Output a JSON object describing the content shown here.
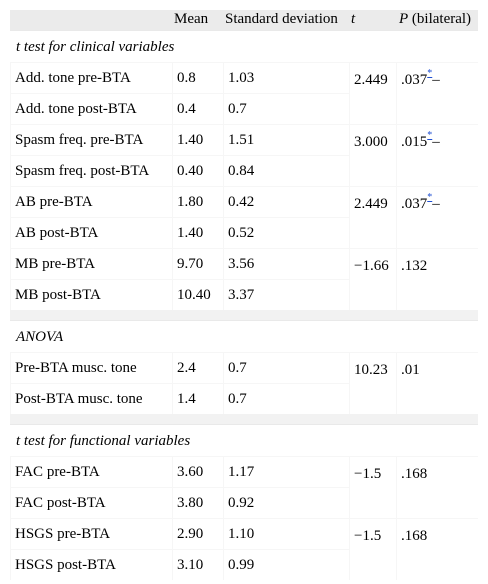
{
  "header": {
    "col_mean": "Mean",
    "col_sd": "Standard deviation",
    "col_t": "t",
    "col_p_label": "P",
    "col_p_suffix": " (bilateral)"
  },
  "sections": [
    {
      "title": "t test for clinical variables",
      "groups": [
        {
          "rows": [
            {
              "label": "Add. tone pre-BTA",
              "mean": "0.8",
              "sd": "1.03"
            },
            {
              "label": "Add. tone post-BTA",
              "mean": "0.4",
              "sd": "0.7"
            }
          ],
          "t": "2.449",
          "p": ".037",
          "sig_mark": "*",
          "dash": "–"
        },
        {
          "rows": [
            {
              "label": "Spasm freq. pre-BTA",
              "mean": "1.40",
              "sd": "1.51"
            },
            {
              "label": "Spasm freq. post-BTA",
              "mean": "0.40",
              "sd": "0.84"
            }
          ],
          "t": "3.000",
          "p": ".015",
          "sig_mark": "*",
          "dash": "–"
        },
        {
          "rows": [
            {
              "label": "AB pre-BTA",
              "mean": "1.80",
              "sd": "0.42"
            },
            {
              "label": "AB post-BTA",
              "mean": "1.40",
              "sd": "0.52"
            }
          ],
          "t": "2.449",
          "p": ".037",
          "sig_mark": "*",
          "dash": "–"
        },
        {
          "rows": [
            {
              "label": "MB pre-BTA",
              "mean": "9.70",
              "sd": "3.56"
            },
            {
              "label": "MB post-BTA",
              "mean": "10.40",
              "sd": "3.37"
            }
          ],
          "t": "−1.66",
          "p": ".132"
        }
      ]
    },
    {
      "title": "ANOVA",
      "groups": [
        {
          "rows": [
            {
              "label": "Pre-BTA musc. tone",
              "mean": "2.4",
              "sd": "0.7"
            },
            {
              "label": "Post-BTA musc. tone",
              "mean": "1.4",
              "sd": "0.7"
            }
          ],
          "t": "10.23",
          "p": ".01"
        }
      ]
    },
    {
      "title": "t test for functional variables",
      "groups": [
        {
          "rows": [
            {
              "label": "FAC pre-BTA",
              "mean": "3.60",
              "sd": "1.17"
            },
            {
              "label": "FAC post-BTA",
              "mean": "3.80",
              "sd": "0.92"
            }
          ],
          "t": "−1.5",
          "p": ".168"
        },
        {
          "rows": [
            {
              "label": "HSGS pre-BTA",
              "mean": "2.90",
              "sd": "1.10"
            },
            {
              "label": "HSGS post-BTA",
              "mean": "3.10",
              "sd": "0.99"
            }
          ],
          "t": "−1.5",
          "p": ".168"
        }
      ]
    }
  ]
}
